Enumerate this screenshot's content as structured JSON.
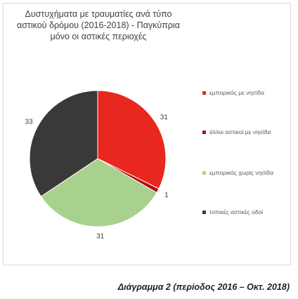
{
  "chart_data": {
    "type": "pie",
    "title": "Δυστυχήματα με τραυματίες ανά τύπο αστικού δρόμου (2016-2018) - Παγκύπρια μόνο οι αστικές περιοχές",
    "categories": [
      "εμπορικός με νησίδα",
      "άλλοι αστικοί με νησίδα",
      "εμπορικός χωρίς νησίδα",
      "τοπικές αστικές οδοί"
    ],
    "values": [
      31,
      1,
      31,
      33
    ],
    "colors": [
      "#e8281e",
      "#b80f0f",
      "#a9d18e",
      "#3b3838"
    ],
    "legend": "right"
  },
  "caption": "Διάγραμμα 2 (περίοδος 2016 – Οκτ. 2018)"
}
